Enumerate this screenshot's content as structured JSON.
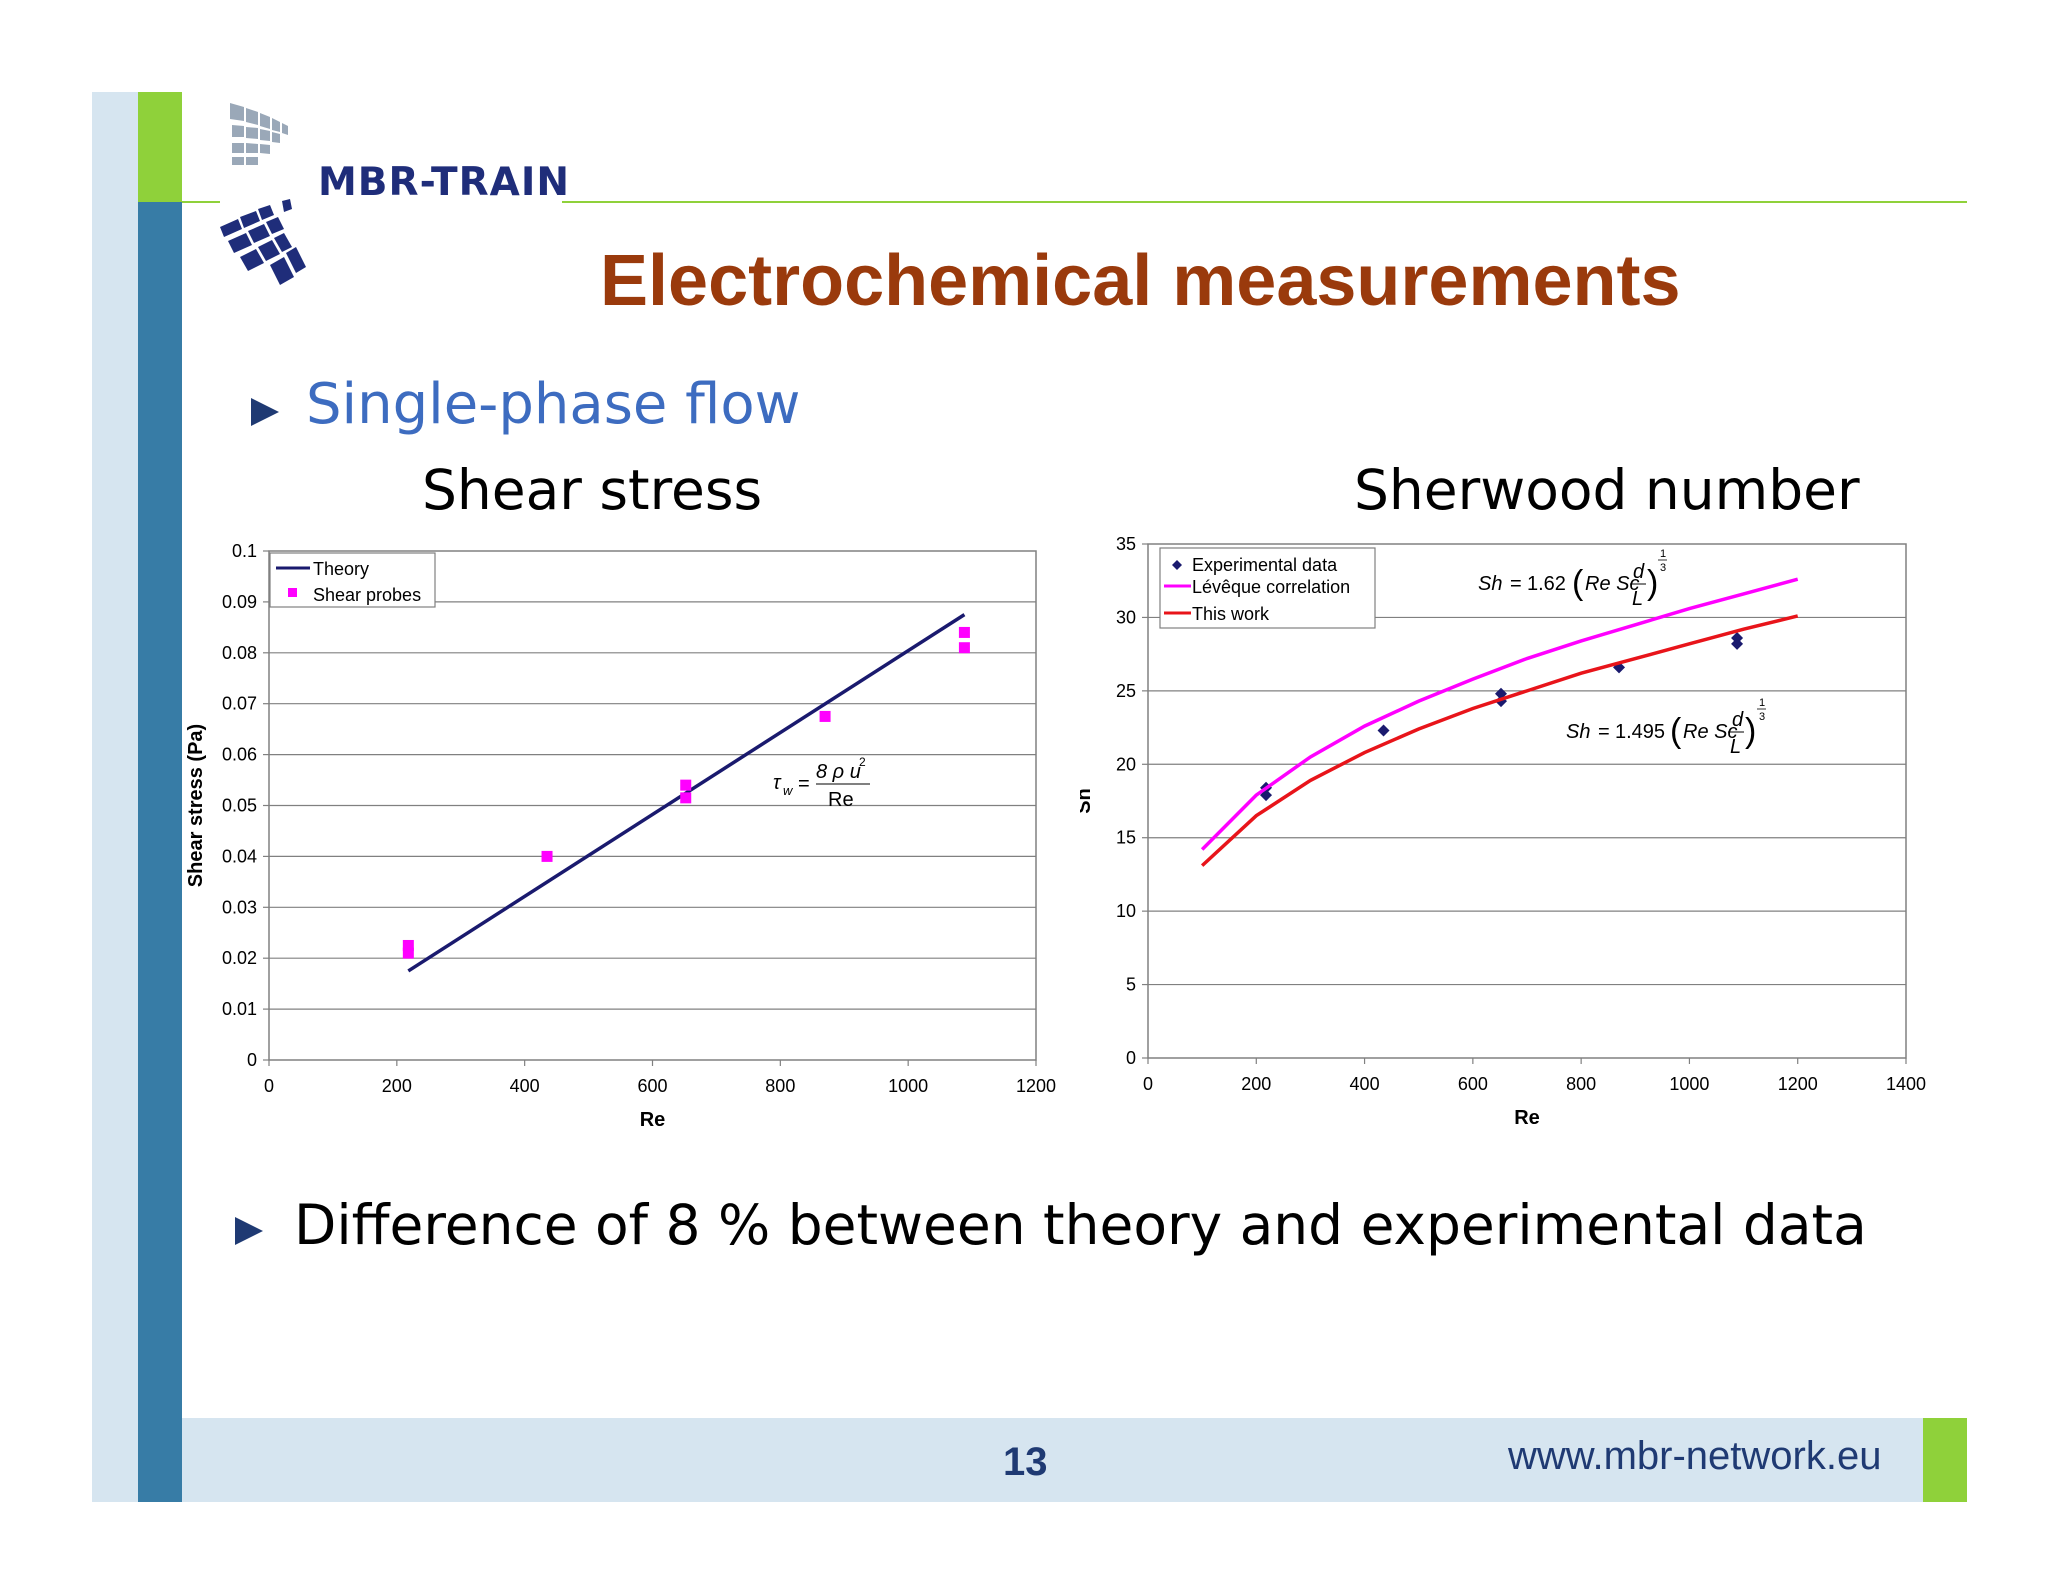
{
  "slide": {
    "logo_text": "MBR-TRAIN",
    "title": "Electrochemical measurements",
    "bullet_1": "Single-phase flow",
    "bullet_2": "Difference of 8 % between theory and experimental data",
    "page_number": "13",
    "url": "www.mbr-network.eu",
    "colors": {
      "title": "#9a3a0c",
      "subtitle": "#3d6cc0",
      "accent_green": "#8fd13a",
      "strip_blue": "#377ca6"
    }
  },
  "chart_data": [
    {
      "type": "scatter",
      "heading": "Shear stress",
      "xlabel": "Re",
      "ylabel": "Shear stress (Pa)",
      "xlim": [
        0,
        1200
      ],
      "ylim": [
        0,
        0.1
      ],
      "xticks": [
        "0",
        "200",
        "400",
        "600",
        "800",
        "1000",
        "1200"
      ],
      "yticks": [
        "0",
        "0.01",
        "0.02",
        "0.03",
        "0.04",
        "0.05",
        "0.06",
        "0.07",
        "0.08",
        "0.09",
        "0.1"
      ],
      "grid": true,
      "legend_position": "top-left",
      "formula": {
        "lhs": "τ",
        "sub": "w",
        "numerator": "8 ρ u",
        "sup": "2",
        "denominator": "Re"
      },
      "series": [
        {
          "name": "Theory",
          "kind": "line",
          "color": "#1a1a6e",
          "x": [
            218,
            1088
          ],
          "y": [
            0.0175,
            0.0875
          ]
        },
        {
          "name": "Shear probes",
          "kind": "square",
          "color": "#ff00ff",
          "x": [
            218,
            218,
            435,
            652,
            652,
            870,
            1088,
            1088
          ],
          "y": [
            0.021,
            0.0225,
            0.04,
            0.0515,
            0.054,
            0.0675,
            0.081,
            0.084
          ]
        }
      ]
    },
    {
      "type": "line",
      "heading": "Sherwood number",
      "xlabel": "Re",
      "ylabel": "Sh",
      "xlim": [
        0,
        1400
      ],
      "ylim": [
        0,
        35
      ],
      "xticks": [
        "0",
        "200",
        "400",
        "600",
        "800",
        "1000",
        "1200",
        "1400"
      ],
      "yticks": [
        "0",
        "5",
        "10",
        "15",
        "20",
        "25",
        "30",
        "35"
      ],
      "grid": true,
      "legend_position": "top-left",
      "formula_1": {
        "lhs": "Sh",
        "coef": "1.62",
        "term": "Re Sc",
        "num": "d",
        "den": "L",
        "exp_num": "1",
        "exp_den": "3"
      },
      "formula_2": {
        "lhs": "Sh",
        "coef": "1.495",
        "term": "Re Sc",
        "num": "d",
        "den": "L",
        "exp_num": "1",
        "exp_den": "3"
      },
      "series": [
        {
          "name": "Experimental data",
          "kind": "diamond",
          "color": "#1a1a6e",
          "x": [
            218,
            218,
            435,
            652,
            652,
            870,
            1088,
            1088
          ],
          "y": [
            17.9,
            18.4,
            22.3,
            24.3,
            24.8,
            26.6,
            28.2,
            28.6
          ]
        },
        {
          "name": "Lévêque correlation",
          "kind": "line",
          "color": "#ff00ff",
          "x": [
            100,
            200,
            300,
            400,
            500,
            600,
            700,
            800,
            900,
            1000,
            1100,
            1200
          ],
          "y": [
            14.2,
            17.9,
            20.5,
            22.6,
            24.3,
            25.8,
            27.2,
            28.4,
            29.5,
            30.6,
            31.6,
            32.6
          ]
        },
        {
          "name": "This work",
          "kind": "line",
          "color": "#e8141a",
          "x": [
            100,
            200,
            300,
            400,
            500,
            600,
            700,
            800,
            900,
            1000,
            1100,
            1200
          ],
          "y": [
            13.1,
            16.5,
            18.9,
            20.8,
            22.4,
            23.8,
            25.0,
            26.2,
            27.2,
            28.2,
            29.2,
            30.1
          ]
        }
      ]
    }
  ]
}
